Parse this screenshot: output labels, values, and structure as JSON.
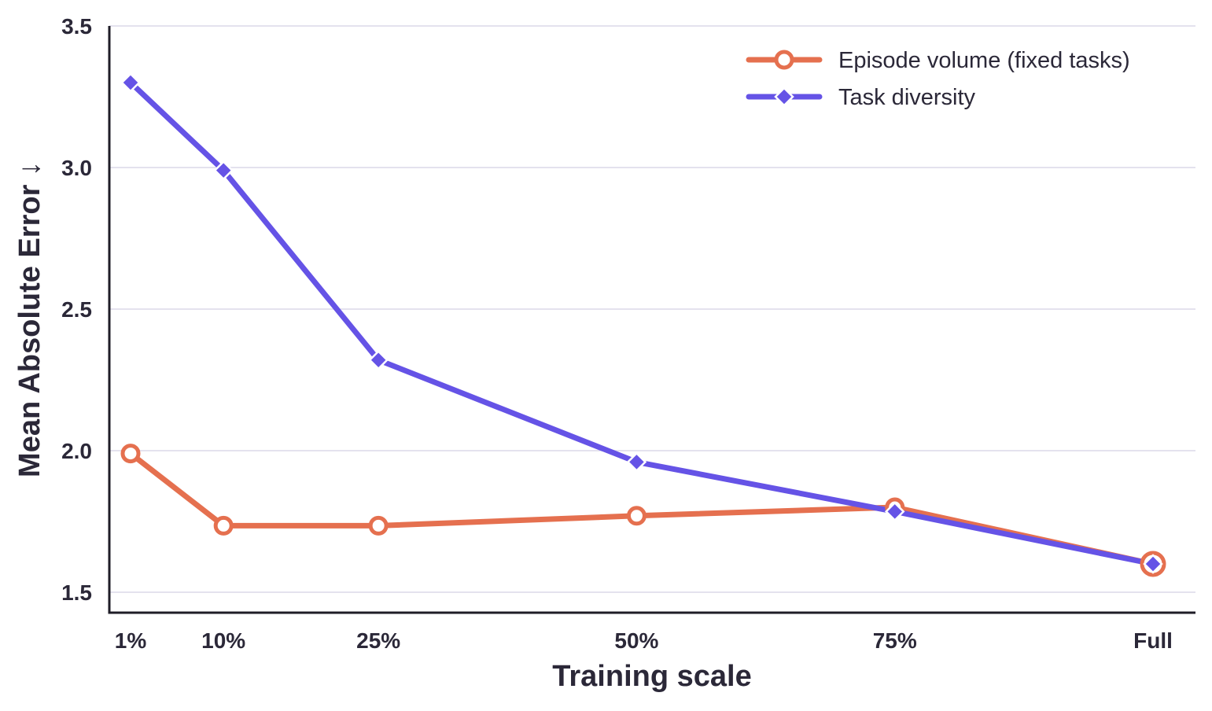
{
  "chart_data": {
    "type": "line",
    "xlabel": "Training scale",
    "ylabel": "Mean Absolute Error  ↓",
    "categories": [
      "1%",
      "10%",
      "25%",
      "50%",
      "75%",
      "Full"
    ],
    "x_positions": [
      1,
      10,
      25,
      50,
      75,
      100
    ],
    "ylim": [
      1.43,
      3.5
    ],
    "yticks": [
      1.5,
      2.0,
      2.5,
      3.0,
      3.5
    ],
    "ytick_labels": [
      "1.5",
      "2.0",
      "2.5",
      "3.0",
      "3.5"
    ],
    "grid": "horizontal",
    "legend_position": "top-right",
    "series": [
      {
        "name": "Episode volume (fixed tasks)",
        "color": "#e5704f",
        "marker": "circle-open",
        "values": [
          1.99,
          1.735,
          1.735,
          1.77,
          1.8,
          1.6
        ]
      },
      {
        "name": "Task diversity",
        "color": "#6553e6",
        "marker": "diamond",
        "values": [
          3.3,
          2.99,
          2.32,
          1.96,
          1.785,
          1.6
        ]
      }
    ]
  }
}
